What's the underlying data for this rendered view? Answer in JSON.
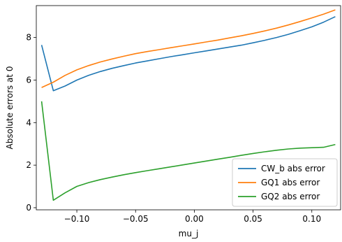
{
  "chart_data": {
    "type": "line",
    "title": "",
    "xlabel": "mu_j",
    "ylabel": "Absolute errors at 0",
    "xlim": [
      -0.1345,
      0.1245
    ],
    "ylim": [
      -0.1,
      9.5
    ],
    "xticks": [
      -0.1,
      -0.05,
      0.0,
      0.05,
      0.1
    ],
    "xtick_labels": [
      "−0.10",
      "−0.05",
      "0.00",
      "0.05",
      "0.10"
    ],
    "yticks": [
      0,
      2,
      4,
      6,
      8
    ],
    "ytick_labels": [
      "0",
      "2",
      "4",
      "6",
      "8"
    ],
    "grid": false,
    "legend_position": "bottom-right",
    "series": [
      {
        "name": "CW_b abs error",
        "color": "#1f77b4",
        "x": [
          -0.13,
          -0.12,
          -0.11,
          -0.1,
          -0.09,
          -0.08,
          -0.07,
          -0.06,
          -0.05,
          -0.04,
          -0.03,
          -0.02,
          -0.01,
          0.0,
          0.01,
          0.02,
          0.03,
          0.04,
          0.05,
          0.06,
          0.07,
          0.08,
          0.09,
          0.1,
          0.11,
          0.12
        ],
        "y": [
          7.65,
          5.5,
          5.72,
          6.0,
          6.22,
          6.4,
          6.55,
          6.68,
          6.8,
          6.9,
          7.0,
          7.1,
          7.19,
          7.28,
          7.37,
          7.46,
          7.55,
          7.64,
          7.75,
          7.87,
          8.0,
          8.15,
          8.32,
          8.5,
          8.72,
          8.98
        ]
      },
      {
        "name": "GQ1 abs error",
        "color": "#ff7f0e",
        "x": [
          -0.13,
          -0.12,
          -0.11,
          -0.1,
          -0.09,
          -0.08,
          -0.07,
          -0.06,
          -0.05,
          -0.04,
          -0.03,
          -0.02,
          -0.01,
          0.0,
          0.01,
          0.02,
          0.03,
          0.04,
          0.05,
          0.06,
          0.07,
          0.08,
          0.09,
          0.1,
          0.11,
          0.12
        ],
        "y": [
          5.65,
          5.9,
          6.22,
          6.48,
          6.68,
          6.85,
          6.99,
          7.12,
          7.24,
          7.34,
          7.43,
          7.52,
          7.61,
          7.7,
          7.79,
          7.88,
          7.98,
          8.08,
          8.19,
          8.31,
          8.44,
          8.59,
          8.75,
          8.92,
          9.1,
          9.3
        ]
      },
      {
        "name": "GQ2 abs error",
        "color": "#2ca02c",
        "x": [
          -0.13,
          -0.12,
          -0.11,
          -0.1,
          -0.09,
          -0.08,
          -0.07,
          -0.06,
          -0.05,
          -0.04,
          -0.03,
          -0.02,
          -0.01,
          0.0,
          0.01,
          0.02,
          0.03,
          0.04,
          0.05,
          0.06,
          0.07,
          0.08,
          0.09,
          0.1,
          0.11,
          0.12
        ],
        "y": [
          5.0,
          0.35,
          0.7,
          1.0,
          1.18,
          1.32,
          1.44,
          1.55,
          1.65,
          1.74,
          1.83,
          1.92,
          2.01,
          2.1,
          2.19,
          2.28,
          2.37,
          2.46,
          2.55,
          2.63,
          2.7,
          2.76,
          2.8,
          2.82,
          2.84,
          2.97
        ]
      }
    ]
  }
}
